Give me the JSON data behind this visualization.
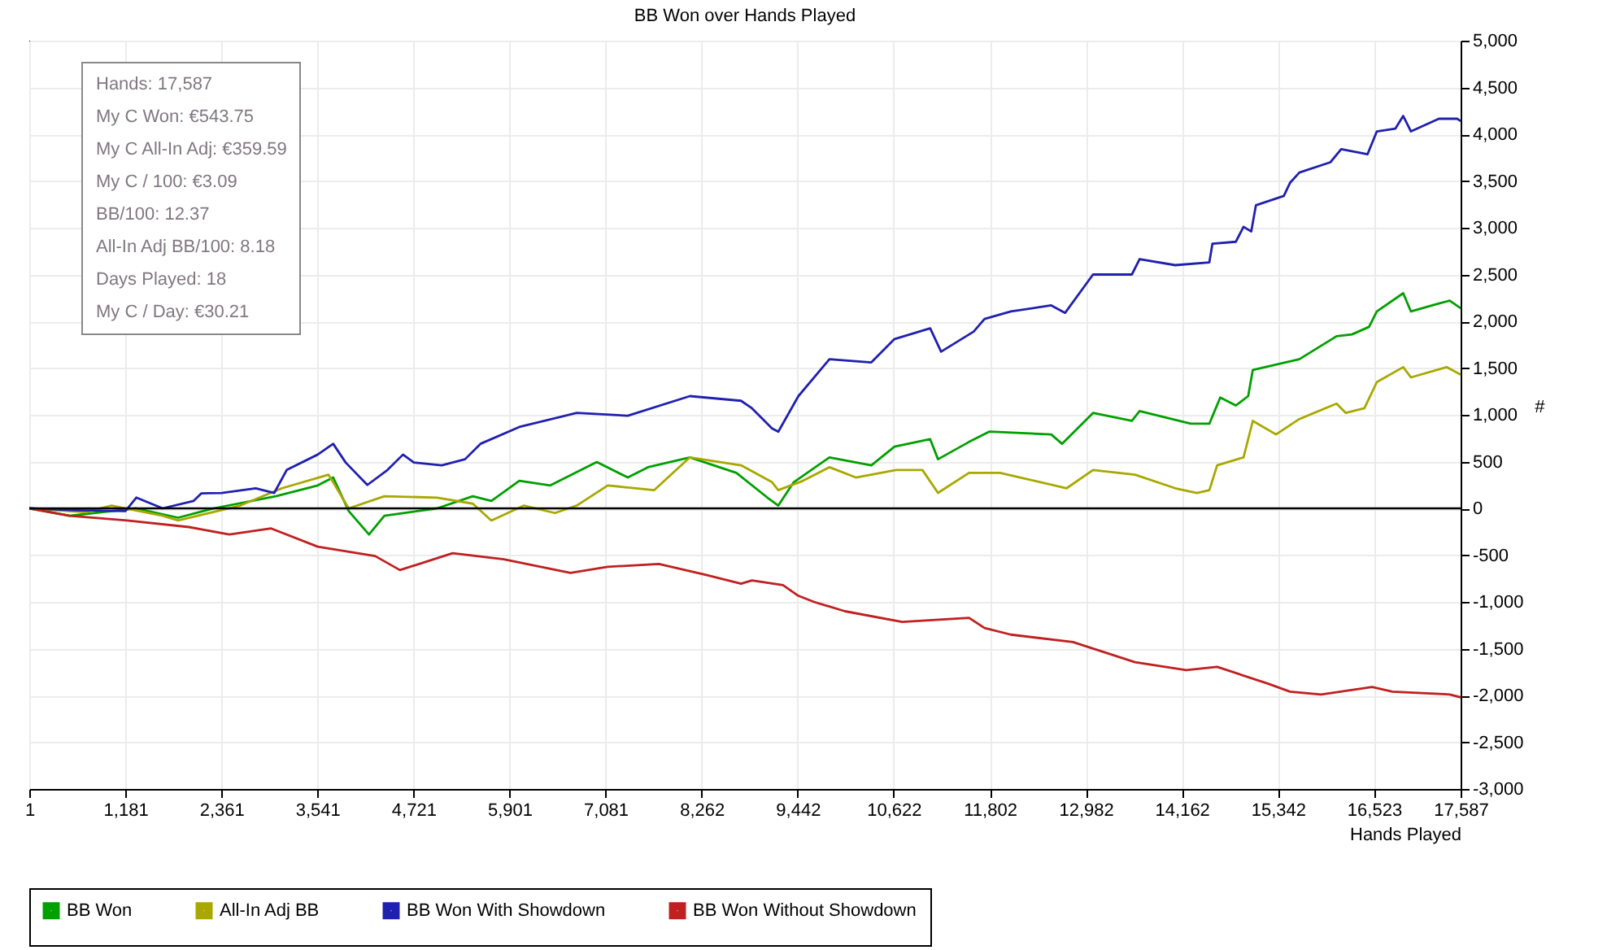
{
  "chart_data": {
    "type": "line",
    "title": "BB Won over Hands Played",
    "xlabel": "Hands Played",
    "ylabel": "#",
    "annotations": [
      "Hands: 17,587",
      "My C Won: €543.75",
      "My C All-In Adj: €359.59",
      "My C / 100: €3.09",
      "BB/100: 12.37",
      "All-In Adj BB/100: 8.18",
      "Days Played: 18",
      "My C / Day: €30.21"
    ],
    "xlim": [
      1,
      17587
    ],
    "xticks": [
      1,
      {
        "value": 1181,
        "label": "1,181"
      },
      {
        "value": 2361,
        "label": "2,361"
      },
      {
        "value": 3541,
        "label": "3,541"
      },
      {
        "value": 4721,
        "label": "4,721"
      },
      {
        "value": 5901,
        "label": "5,901"
      },
      {
        "value": 7081,
        "label": "7,081"
      },
      {
        "value": 8262,
        "label": "8,262"
      },
      {
        "value": 9442,
        "label": "9,442"
      },
      {
        "value": 10622,
        "label": "10,622"
      },
      {
        "value": 11802,
        "label": "11,802"
      },
      {
        "value": 12982,
        "label": "12,982"
      },
      {
        "value": 14162,
        "label": "14,162"
      },
      {
        "value": 15342,
        "label": "15,342"
      },
      {
        "value": 16523,
        "label": "16,523"
      },
      {
        "value": 17587,
        "label": "17,587"
      }
    ],
    "ylim": [
      -3000,
      5000
    ],
    "yticks": [
      {
        "value": -3000,
        "label": "-3,000"
      },
      {
        "value": -2500,
        "label": "-2,500"
      },
      {
        "value": -2000,
        "label": "-2,000"
      },
      {
        "value": -1500,
        "label": "-1,500"
      },
      {
        "value": -1000,
        "label": "-1,000"
      },
      -500,
      0,
      500,
      {
        "value": 1000,
        "label": "1,000"
      },
      {
        "value": 1500,
        "label": "1,500"
      },
      {
        "value": 2000,
        "label": "2,000"
      },
      {
        "value": 2500,
        "label": "2,500"
      },
      {
        "value": 3000,
        "label": "3,000"
      },
      {
        "value": 3500,
        "label": "3,500"
      },
      {
        "value": 4000,
        "label": "4,000"
      },
      {
        "value": 4500,
        "label": "4,500"
      },
      {
        "value": 5000,
        "label": "5,000"
      }
    ],
    "grid": true,
    "legend": "bottom",
    "ref_lines": [
      {
        "axis": "y",
        "value": 0,
        "color": "#000000"
      }
    ],
    "series": [
      {
        "name": "BB Won",
        "color": "#00a000",
        "x": [
          1,
          496,
          1316,
          1830,
          2268,
          3030,
          3545,
          3735,
          3926,
          4175,
          4364,
          5012,
          5450,
          5679,
          6022,
          6403,
          6974,
          7355,
          7603,
          8118,
          8689,
          9070,
          9204,
          9394,
          9832,
          10347,
          10632,
          11070,
          11166,
          11547,
          11795,
          12557,
          12690,
          13071,
          13548,
          13643,
          14271,
          14500,
          14634,
          14825,
          14977,
          15034,
          15606,
          16063,
          16253,
          16462,
          16558,
          16882,
          16977,
          17320,
          17453,
          17587
        ],
        "values": [
          0,
          -80,
          0,
          -100,
          0,
          130,
          245,
          330,
          -30,
          -280,
          -80,
          0,
          130,
          80,
          295,
          245,
          495,
          330,
          440,
          545,
          380,
          115,
          30,
          280,
          545,
          460,
          660,
          740,
          525,
          710,
          820,
          790,
          690,
          1020,
          935,
          1040,
          905,
          905,
          1185,
          1100,
          1200,
          1480,
          1595,
          1840,
          1860,
          1940,
          2105,
          2300,
          2105,
          2190,
          2220,
          2140
        ]
      },
      {
        "name": "All-In Adj BB",
        "color": "#a8a800",
        "x": [
          1,
          687,
          1011,
          1640,
          1830,
          2592,
          3107,
          3678,
          3926,
          4364,
          5012,
          5450,
          5679,
          6079,
          6460,
          6727,
          7108,
          7680,
          8118,
          8746,
          9127,
          9204,
          9508,
          9832,
          10156,
          10651,
          10975,
          11166,
          11547,
          11928,
          12176,
          12747,
          13071,
          13586,
          14081,
          14348,
          14500,
          14596,
          14920,
          15034,
          15319,
          15606,
          16063,
          16177,
          16405,
          16558,
          16882,
          16977,
          17415,
          17587
        ],
        "values": [
          0,
          -40,
          30,
          -80,
          -130,
          30,
          215,
          360,
          0,
          130,
          115,
          50,
          -130,
          30,
          -50,
          30,
          245,
          195,
          545,
          460,
          280,
          195,
          295,
          440,
          330,
          410,
          410,
          165,
          380,
          380,
          330,
          215,
          410,
          360,
          215,
          165,
          195,
          460,
          545,
          935,
          790,
          955,
          1120,
          1020,
          1070,
          1350,
          1510,
          1400,
          1510,
          1430
        ]
      },
      {
        "name": "BB Won With Showdown",
        "color": "#2020b0",
        "x": [
          1,
          592,
          1182,
          1316,
          1640,
          2021,
          2116,
          2364,
          2783,
          3011,
          3164,
          3545,
          3735,
          3888,
          4155,
          4402,
          4593,
          4726,
          5069,
          5355,
          5545,
          6022,
          6727,
          7355,
          8118,
          8746,
          8880,
          9127,
          9204,
          9451,
          9832,
          10347,
          10632,
          11070,
          11204,
          11605,
          11738,
          12062,
          12557,
          12728,
          13071,
          13548,
          13643,
          14081,
          14500,
          14538,
          14825,
          14920,
          15015,
          15072,
          15415,
          15491,
          15606,
          15987,
          16120,
          16443,
          16558,
          16786,
          16882,
          16977,
          17320,
          17548,
          17587
        ],
        "values": [
          0,
          -20,
          -30,
          115,
          0,
          80,
          160,
          165,
          215,
          165,
          410,
          575,
          690,
          490,
          250,
          410,
          575,
          490,
          460,
          525,
          690,
          870,
          1020,
          990,
          1200,
          1150,
          1070,
          855,
          820,
          1200,
          1595,
          1560,
          1810,
          1925,
          1675,
          1890,
          2025,
          2105,
          2170,
          2090,
          2500,
          2500,
          2665,
          2600,
          2630,
          2830,
          2850,
          3010,
          2960,
          3240,
          3340,
          3480,
          3590,
          3700,
          3840,
          3785,
          4030,
          4060,
          4195,
          4030,
          4165,
          4165,
          4140
        ]
      },
      {
        "name": "BB Won Without Showdown",
        "color": "#c02020",
        "x": [
          1,
          496,
          1201,
          1963,
          2459,
          2973,
          3545,
          4250,
          4555,
          5203,
          5831,
          6650,
          7108,
          7737,
          8308,
          8746,
          8880,
          9261,
          9451,
          9642,
          10023,
          10727,
          11547,
          11738,
          12062,
          12824,
          13586,
          14215,
          14596,
          15224,
          15491,
          15873,
          16500,
          16748,
          17453,
          17587
        ],
        "values": [
          0,
          -80,
          -130,
          -200,
          -280,
          -215,
          -410,
          -510,
          -660,
          -480,
          -545,
          -690,
          -625,
          -595,
          -710,
          -805,
          -770,
          -820,
          -935,
          -1000,
          -1100,
          -1215,
          -1170,
          -1280,
          -1350,
          -1430,
          -1645,
          -1730,
          -1695,
          -1875,
          -1960,
          -1990,
          -1910,
          -1960,
          -1990,
          -2020
        ]
      }
    ]
  }
}
